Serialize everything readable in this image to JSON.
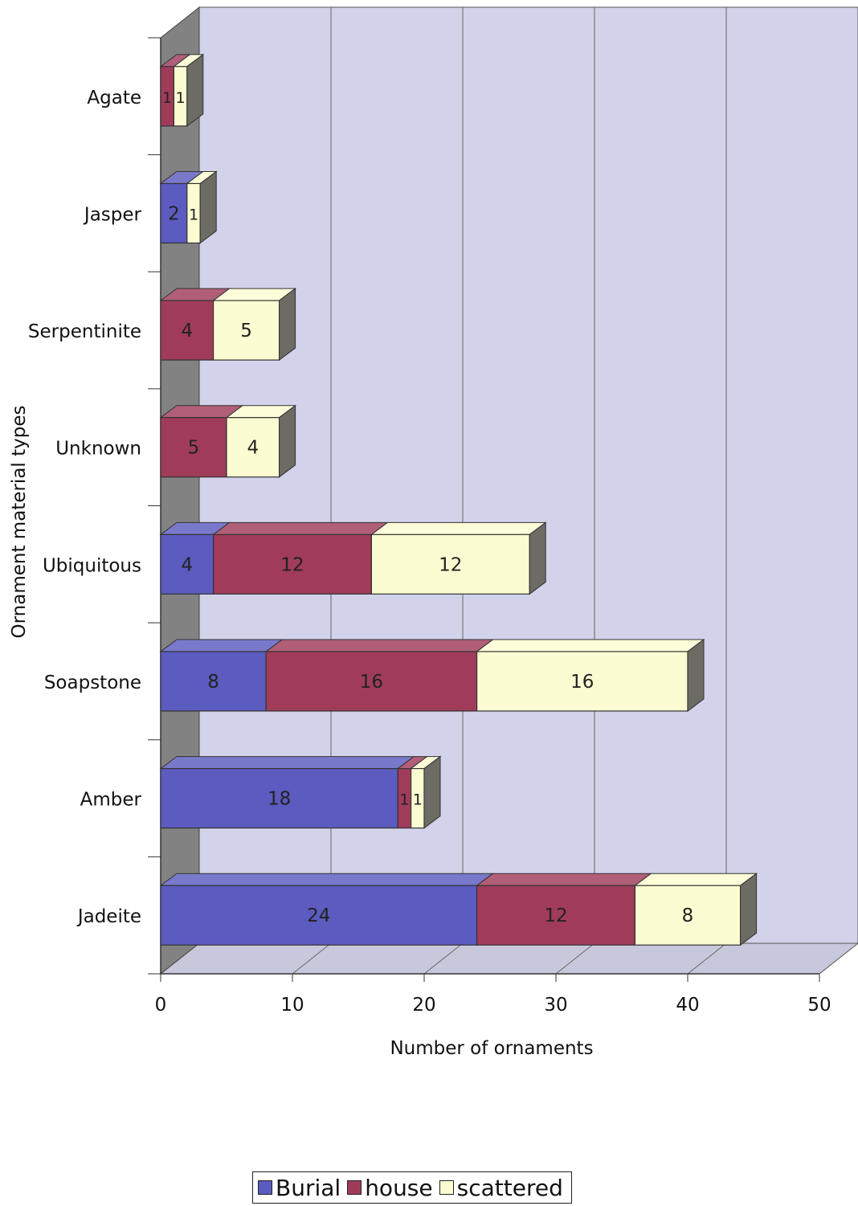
{
  "chart_data": {
    "type": "bar",
    "orientation": "horizontal",
    "stacked": true,
    "three_d": true,
    "categories": [
      "Agate",
      "Jasper",
      "Serpentinite",
      "Unknown",
      "Ubiquitous",
      "Soapstone",
      "Amber",
      "Jadeite"
    ],
    "series": [
      {
        "name": "Burial",
        "color": "#5b5bc0",
        "values": [
          0,
          2,
          0,
          0,
          4,
          8,
          18,
          24
        ]
      },
      {
        "name": "house",
        "color": "#a03c5a",
        "values": [
          1,
          0,
          4,
          5,
          12,
          16,
          1,
          12
        ]
      },
      {
        "name": "scattered",
        "color": "#fcfcd2",
        "values": [
          1,
          1,
          5,
          4,
          12,
          16,
          1,
          8
        ]
      }
    ],
    "data_labels": [
      [
        "",
        "2",
        "",
        "",
        "4",
        "8",
        "18",
        "24"
      ],
      [
        "1",
        "",
        "4",
        "5",
        "12",
        "16",
        "1",
        "12"
      ],
      [
        "1",
        "1",
        "5",
        "4",
        "12",
        "16",
        "1",
        "8"
      ]
    ],
    "xlabel": "Number of ornaments",
    "ylabel": "Ornament material types",
    "xlim": [
      0,
      50
    ],
    "xticks": [
      0,
      10,
      20,
      30,
      40,
      50
    ],
    "grid": true,
    "legend_position": "bottom",
    "wall_color": "#d2d2ea",
    "side_wall_color": "#828282",
    "floor_color": "#c8c8dc"
  }
}
